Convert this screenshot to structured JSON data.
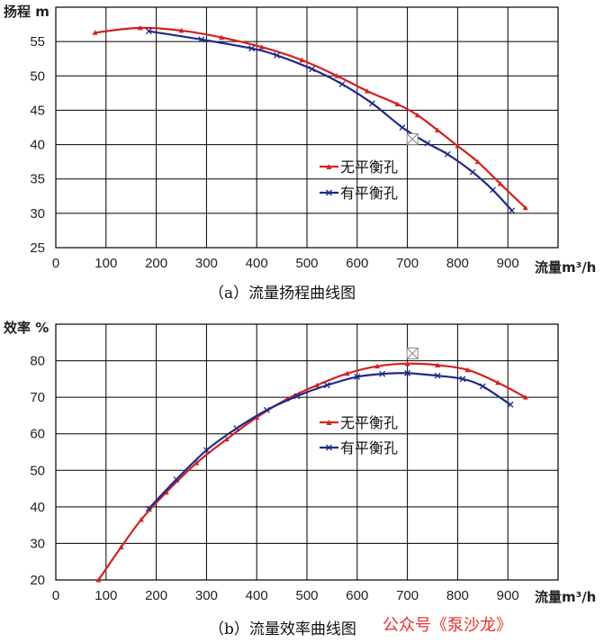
{
  "chart_data": [
    {
      "type": "line",
      "caption": "（a）流量扬程曲线图",
      "ylabel": "扬程 m",
      "xlabel": "流量m³/h",
      "xlim": [
        0,
        1000
      ],
      "ylim": [
        25,
        60
      ],
      "xticks": [
        0,
        100,
        200,
        300,
        400,
        500,
        600,
        700,
        800,
        900
      ],
      "yticks": [
        25,
        30,
        35,
        40,
        45,
        50,
        55
      ],
      "grid": true,
      "legend_position": "center-right",
      "series": [
        {
          "name": "无平衡孔",
          "color": "#d62020",
          "marker": "triangle",
          "x": [
            78,
            168,
            250,
            330,
            410,
            490,
            560,
            620,
            680,
            720,
            760,
            800,
            840,
            885,
            935
          ],
          "y": [
            56.3,
            57.0,
            56.6,
            55.6,
            54.2,
            52.3,
            50.0,
            47.8,
            45.9,
            44.3,
            42.1,
            39.8,
            37.5,
            34.3,
            30.8
          ]
        },
        {
          "name": "有平衡孔",
          "color": "#1e2a8c",
          "marker": "x",
          "x": [
            185,
            290,
            390,
            440,
            510,
            570,
            630,
            690,
            740,
            780,
            830,
            870,
            908
          ],
          "y": [
            56.5,
            55.3,
            54.0,
            53.0,
            51.0,
            48.8,
            46.0,
            42.5,
            40.2,
            38.6,
            36.0,
            33.4,
            30.4
          ]
        }
      ],
      "annotation": {
        "type": "box-x",
        "x": 710,
        "y": 40.8
      }
    },
    {
      "type": "line",
      "caption": "（b）流量效率曲线图",
      "ylabel": "效率 %",
      "xlabel": "流量m³/h",
      "xlim": [
        0,
        1000
      ],
      "ylim": [
        20,
        90
      ],
      "xticks": [
        0,
        100,
        200,
        300,
        400,
        500,
        600,
        700,
        800,
        900
      ],
      "yticks": [
        20,
        30,
        40,
        50,
        60,
        70,
        80
      ],
      "grid": true,
      "legend_position": "center-right",
      "series": [
        {
          "name": "无平衡孔",
          "color": "#d62020",
          "marker": "triangle",
          "x": [
            85,
            130,
            170,
            220,
            280,
            340,
            400,
            460,
            520,
            580,
            640,
            700,
            760,
            820,
            880,
            935
          ],
          "y": [
            20,
            29,
            36.5,
            44,
            52,
            58.5,
            64.5,
            69.5,
            73.3,
            76.5,
            78.5,
            79.2,
            78.8,
            77.5,
            74,
            70
          ]
        },
        {
          "name": "有平衡孔",
          "color": "#1e2a8c",
          "marker": "x",
          "x": [
            185,
            240,
            300,
            360,
            420,
            480,
            540,
            600,
            650,
            700,
            760,
            810,
            850,
            905
          ],
          "y": [
            39.5,
            47.5,
            55.5,
            61.5,
            66.5,
            70.3,
            73.3,
            75.6,
            76.4,
            76.6,
            75.9,
            75.0,
            73.0,
            68.0
          ]
        }
      ],
      "annotation": {
        "type": "box-x",
        "x": 710,
        "y": 82
      }
    }
  ],
  "watermark": "公众号《泵沙龙》"
}
